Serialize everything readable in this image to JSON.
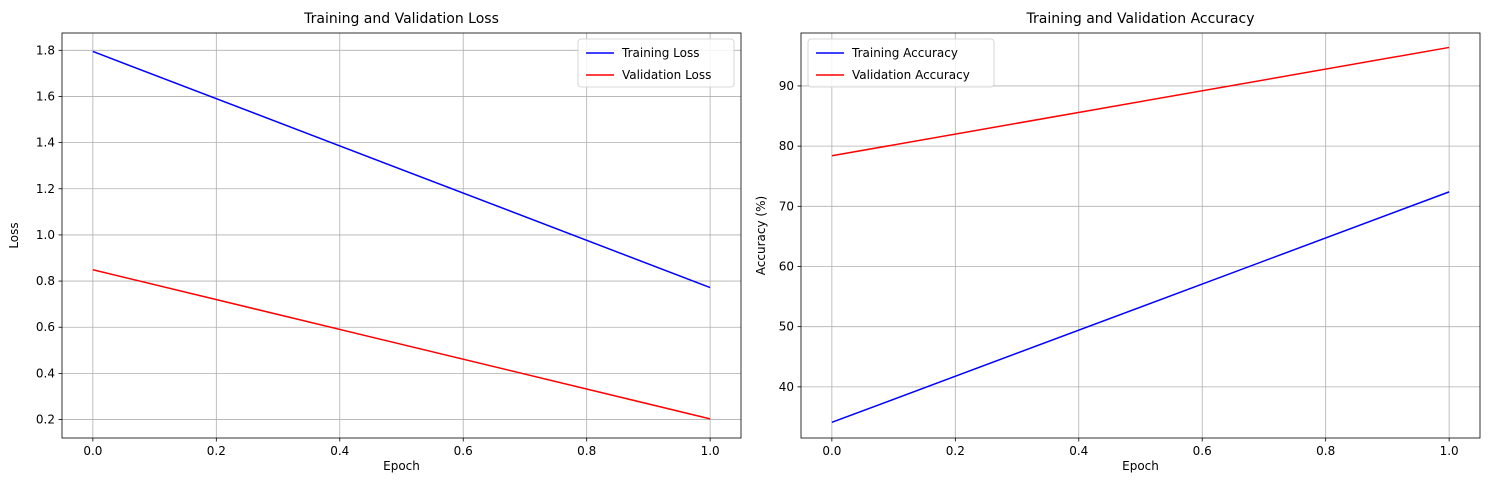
{
  "chart_data": [
    {
      "type": "line",
      "title": "Training and Validation Loss",
      "xlabel": "Epoch",
      "ylabel": "Loss",
      "x": [
        0,
        1
      ],
      "xlim": [
        -0.05,
        1.05
      ],
      "ylim": [
        0.12,
        1.875
      ],
      "xticks": [
        0.0,
        0.2,
        0.4,
        0.6,
        0.8,
        1.0
      ],
      "xtick_labels": [
        "0.0",
        "0.2",
        "0.4",
        "0.6",
        "0.8",
        "1.0"
      ],
      "yticks": [
        0.2,
        0.4,
        0.6,
        0.8,
        1.0,
        1.2,
        1.4,
        1.6,
        1.8
      ],
      "ytick_labels": [
        "0.2",
        "0.4",
        "0.6",
        "0.8",
        "1.0",
        "1.2",
        "1.4",
        "1.6",
        "1.8"
      ],
      "grid": true,
      "legend": "upper-right",
      "series": [
        {
          "name": "Training Loss",
          "color": "#0000ff",
          "values": [
            1.795,
            0.772
          ]
        },
        {
          "name": "Validation Loss",
          "color": "#ff0000",
          "values": [
            0.849,
            0.203
          ]
        }
      ]
    },
    {
      "type": "line",
      "title": "Training and Validation Accuracy",
      "xlabel": "Epoch",
      "ylabel": "Accuracy (%)",
      "x": [
        0,
        1
      ],
      "xlim": [
        -0.05,
        1.05
      ],
      "ylim": [
        31.5,
        98.8
      ],
      "xticks": [
        0.0,
        0.2,
        0.4,
        0.6,
        0.8,
        1.0
      ],
      "xtick_labels": [
        "0.0",
        "0.2",
        "0.4",
        "0.6",
        "0.8",
        "1.0"
      ],
      "yticks": [
        40,
        50,
        60,
        70,
        80,
        90
      ],
      "ytick_labels": [
        "40",
        "50",
        "60",
        "70",
        "80",
        "90"
      ],
      "grid": true,
      "legend": "upper-left",
      "series": [
        {
          "name": "Training Accuracy",
          "color": "#0000ff",
          "values": [
            34.1,
            72.4
          ]
        },
        {
          "name": "Validation Accuracy",
          "color": "#ff0000",
          "values": [
            78.4,
            96.4
          ]
        }
      ]
    }
  ]
}
